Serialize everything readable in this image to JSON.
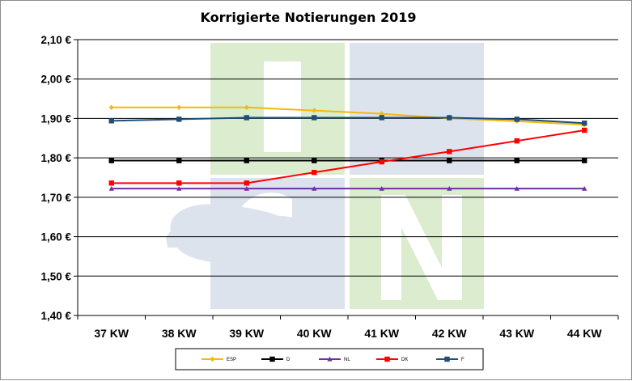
{
  "chart_data": {
    "type": "line",
    "title": "Korrigierte Notierungen 2019",
    "xlabel": "",
    "ylabel": "",
    "categories": [
      "37 KW",
      "38 KW",
      "39 KW",
      "40 KW",
      "41 KW",
      "42 KW",
      "43 KW",
      "44 KW"
    ],
    "ylim": [
      1.4,
      2.1
    ],
    "yticks": [
      2.1,
      2.0,
      1.9,
      1.8,
      1.7,
      1.6,
      1.5,
      1.4
    ],
    "ytick_labels": [
      "2,10 €",
      "2,00 €",
      "1,90 €",
      "1,80 €",
      "1,70 €",
      "1,60 €",
      "1,50 €",
      "1,40 €"
    ],
    "grid": true,
    "legend_position": "bottom",
    "series": [
      {
        "name": "ESP",
        "color": "#f2b90f",
        "marker": "diamond",
        "values": [
          1.928,
          1.928,
          1.928,
          1.92,
          1.912,
          1.9,
          1.893,
          1.884
        ]
      },
      {
        "name": "D",
        "color": "#000000",
        "marker": "square",
        "values": [
          1.793,
          1.793,
          1.793,
          1.793,
          1.793,
          1.793,
          1.793,
          1.793
        ]
      },
      {
        "name": "NL",
        "color": "#7030a0",
        "marker": "triangle",
        "values": [
          1.722,
          1.722,
          1.722,
          1.722,
          1.722,
          1.722,
          1.722,
          1.722
        ]
      },
      {
        "name": "DK",
        "color": "#ff0000",
        "marker": "square",
        "values": [
          1.736,
          1.736,
          1.736,
          1.763,
          1.79,
          1.816,
          1.843,
          1.87
        ]
      },
      {
        "name": "F",
        "color": "#1f4e79",
        "marker": "square",
        "values": [
          1.894,
          1.898,
          1.902,
          1.902,
          1.902,
          1.902,
          1.898,
          1.888
        ]
      }
    ]
  },
  "watermark": {
    "colors": {
      "green": "#dbeccf",
      "blue": "#dde3ed"
    }
  }
}
